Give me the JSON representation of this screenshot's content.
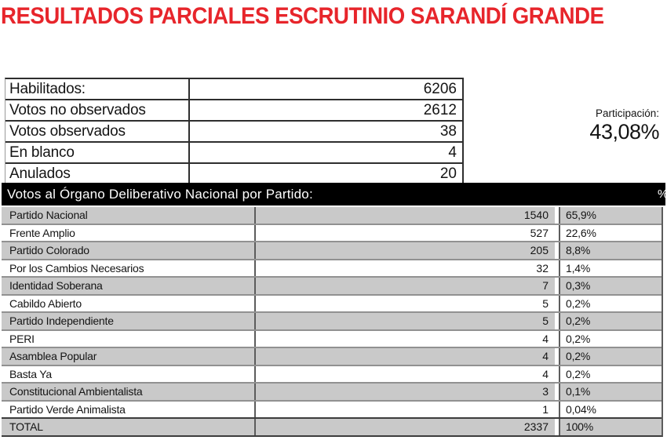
{
  "title": "RESULTADOS PARCIALES ESCRUTINIO SARANDÍ GRANDE",
  "summary_table": {
    "rows": [
      {
        "label": "Habilitados:",
        "value": "6206"
      },
      {
        "label": "Votos no observados",
        "value": "2612"
      },
      {
        "label": "Votos observados",
        "value": "38"
      },
      {
        "label": "En blanco",
        "value": "4"
      },
      {
        "label": "Anulados",
        "value": "20"
      }
    ]
  },
  "participation": {
    "label": "Participación:",
    "value": "43,08%"
  },
  "party_table": {
    "header": "Votos al Órgano Deliberativo Nacional por Partido:",
    "percent_symbol": "%",
    "rows": [
      {
        "party": "Partido Nacional",
        "votes": "1540",
        "pct": "65,9%"
      },
      {
        "party": "Frente Amplio",
        "votes": "527",
        "pct": "22,6%"
      },
      {
        "party": "Partido Colorado",
        "votes": "205",
        "pct": "8,8%"
      },
      {
        "party": "Por los Cambios Necesarios",
        "votes": "32",
        "pct": "1,4%"
      },
      {
        "party": "Identidad Soberana",
        "votes": "7",
        "pct": "0,3%"
      },
      {
        "party": "Cabildo Abierto",
        "votes": "5",
        "pct": "0,2%"
      },
      {
        "party": "Partido Independiente",
        "votes": "5",
        "pct": "0,2%"
      },
      {
        "party": "PERI",
        "votes": "4",
        "pct": "0,2%"
      },
      {
        "party": "Asamblea Popular",
        "votes": "4",
        "pct": "0,2%"
      },
      {
        "party": "Basta Ya",
        "votes": "4",
        "pct": "0,2%"
      },
      {
        "party": "Constitucional Ambientalista",
        "votes": "3",
        "pct": "0,1%"
      },
      {
        "party": "Partido Verde Animalista",
        "votes": "1",
        "pct": "0,04%"
      },
      {
        "party": "TOTAL",
        "votes": "2337",
        "pct": "100%"
      }
    ]
  },
  "colors": {
    "title_red": "#e7252b",
    "row_gray": "#c9c9c9",
    "header_bar_bg": "#000000",
    "header_bar_text": "#ffffff"
  }
}
